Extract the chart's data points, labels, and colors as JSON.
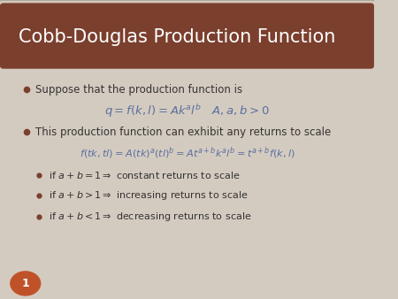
{
  "title": "Cobb-Douglas Production Function",
  "title_bg_color": "#7B3F2E",
  "title_text_color": "#FFFFFF",
  "slide_bg_color": "#D4CBC0",
  "slide_border_color": "#B0A89A",
  "bullet_color": "#7B3F2E",
  "text_color": "#333333",
  "math_color": "#5A6FA0",
  "page_number": "1",
  "page_number_bg": "#C0522A",
  "bullet1": "Suppose that the production function is",
  "formula1": "$q = f(k,l) = Ak^a l^b \\quad A,a,b > 0$",
  "bullet2": "This production function can exhibit any returns to scale",
  "formula2": "$f(tk,tl) = A(tk)^a(tl)^b = At^{a+b}k^a l^b = t^{a+b}f(k,l)$",
  "sub_bullet1": "if $a + b = 1 \\Rightarrow$ constant returns to scale",
  "sub_bullet2": "if $a + b > 1 \\Rightarrow$ increasing returns to scale",
  "sub_bullet3": "if $a + b < 1 \\Rightarrow$ decreasing returns to scale"
}
